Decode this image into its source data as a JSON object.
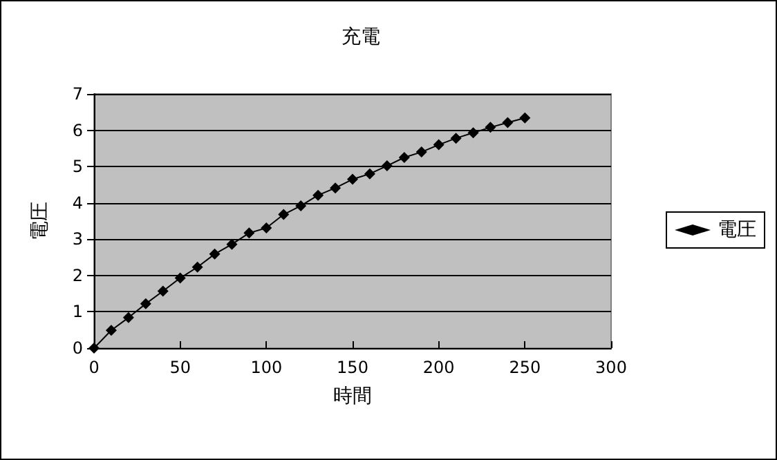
{
  "chart_data": {
    "type": "line",
    "title": "充電",
    "xlabel": "時間",
    "ylabel": "電圧",
    "xlim": [
      0,
      300
    ],
    "xticks": [
      0,
      50,
      100,
      150,
      200,
      250,
      300
    ],
    "ylim": [
      0,
      7
    ],
    "yticks": [
      0,
      1,
      2,
      3,
      4,
      5,
      6,
      7
    ],
    "grid": "y",
    "legend": "right",
    "marker": "diamond",
    "line_style": "solid",
    "series": [
      {
        "name": "電圧",
        "color": "#000000",
        "x": [
          0,
          10,
          20,
          30,
          40,
          50,
          60,
          70,
          80,
          90,
          100,
          110,
          120,
          130,
          140,
          150,
          160,
          170,
          180,
          190,
          200,
          210,
          220,
          230,
          240,
          250
        ],
        "values": [
          0,
          0.49,
          0.84,
          1.22,
          1.57,
          1.93,
          2.23,
          2.59,
          2.86,
          3.17,
          3.31,
          3.68,
          3.92,
          4.21,
          4.41,
          4.65,
          4.8,
          5.02,
          5.25,
          5.4,
          5.6,
          5.78,
          5.93,
          6.08,
          6.21,
          6.34
        ]
      }
    ]
  }
}
